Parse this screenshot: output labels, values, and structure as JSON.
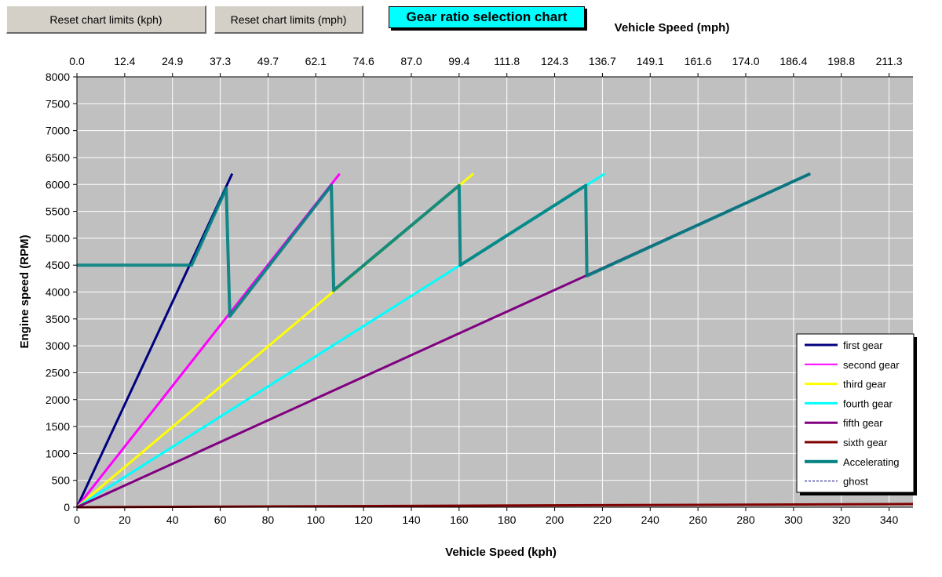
{
  "buttons": {
    "reset_kph": "Reset chart limits (kph)",
    "reset_mph": "Reset chart limits (mph)"
  },
  "title_box": "Gear ratio selection chart",
  "chart_data": {
    "type": "line",
    "title": "",
    "xlabel": "Vehicle Speed (kph)",
    "x2label": "Vehicle Speed (mph)",
    "ylabel": "Engine speed (RPM)",
    "xlim": [
      0,
      350
    ],
    "ylim": [
      0,
      8000
    ],
    "x_ticks": [
      0,
      20,
      40,
      60,
      80,
      100,
      120,
      140,
      160,
      180,
      200,
      220,
      240,
      260,
      280,
      300,
      320,
      340
    ],
    "x2_tick_labels": [
      "0.0",
      "12.4",
      "24.9",
      "37.3",
      "49.7",
      "62.1",
      "74.6",
      "87.0",
      "99.4",
      "111.8",
      "124.3",
      "136.7",
      "149.1",
      "161.6",
      "174.0",
      "186.4",
      "198.8",
      "211.3"
    ],
    "y_ticks": [
      0,
      500,
      1000,
      1500,
      2000,
      2500,
      3000,
      3500,
      4000,
      4500,
      5000,
      5500,
      6000,
      6500,
      7000,
      7500,
      8000
    ],
    "grid": true,
    "legend_position": "bottom-right",
    "colors": {
      "plot_background": "#c0c0c0",
      "grid": "#ffffff"
    },
    "series": [
      {
        "name": "first gear",
        "color": "#000080",
        "x": [
          0,
          65
        ],
        "y": [
          0,
          6200
        ]
      },
      {
        "name": "second gear",
        "color": "#ff00ff",
        "x": [
          0,
          110
        ],
        "y": [
          0,
          6200
        ]
      },
      {
        "name": "third gear",
        "color": "#ffff00",
        "x": [
          0,
          166
        ],
        "y": [
          0,
          6200
        ]
      },
      {
        "name": "fourth gear",
        "color": "#00ffff",
        "x": [
          0,
          221
        ],
        "y": [
          0,
          6200
        ]
      },
      {
        "name": "fifth gear",
        "color": "#800080",
        "x": [
          0,
          307
        ],
        "y": [
          0,
          6200
        ]
      },
      {
        "name": "sixth gear",
        "color": "#800000",
        "x": [
          0,
          350
        ],
        "y": [
          0,
          60
        ]
      },
      {
        "name": "Accelerating",
        "color": "#008080",
        "x": [
          0,
          48,
          62.5,
          64,
          106.5,
          107.5,
          160,
          160.5,
          213,
          213.5,
          307
        ],
        "y": [
          4500,
          4500,
          5930,
          3550,
          5980,
          4030,
          5980,
          4500,
          5980,
          4300,
          6200
        ]
      },
      {
        "name": "ghost",
        "color": "#000080",
        "x": [
          0,
          0
        ],
        "y": [
          0,
          0
        ]
      }
    ]
  }
}
